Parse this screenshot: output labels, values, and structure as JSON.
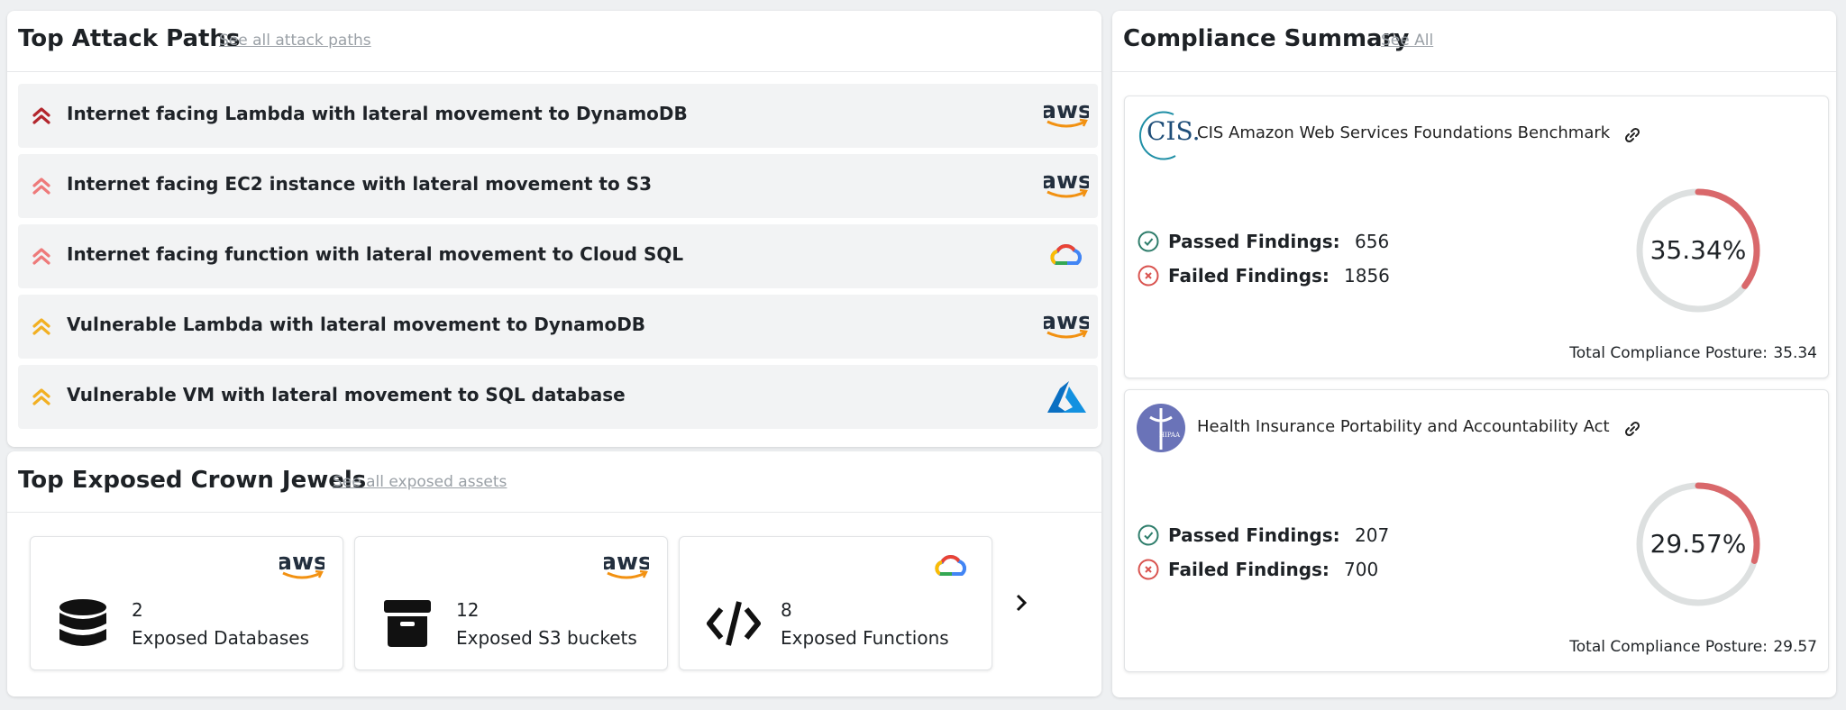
{
  "attack_paths": {
    "title": "Top Attack Paths",
    "link": "See all attack paths",
    "items": [
      {
        "label": "Internet facing Lambda with lateral movement to DynamoDB",
        "color": "#b3262d",
        "provider": "aws"
      },
      {
        "label": "Internet facing EC2 instance with lateral movement to S3",
        "color": "#ee7a7a",
        "provider": "aws"
      },
      {
        "label": "Internet facing function with lateral movement to Cloud SQL",
        "color": "#ee7a7a",
        "provider": "gcp"
      },
      {
        "label": "Vulnerable Lambda with lateral movement to DynamoDB",
        "color": "#f2b023",
        "provider": "aws"
      },
      {
        "label": "Vulnerable VM with lateral movement to SQL database",
        "color": "#f2b023",
        "provider": "azure"
      }
    ]
  },
  "crown_jewels": {
    "title": "Top Exposed Crown Jewels",
    "link": "See all exposed assets",
    "cards": [
      {
        "count": 2,
        "label": "Exposed Databases",
        "provider": "aws"
      },
      {
        "count": 12,
        "label": "Exposed S3 buckets",
        "provider": "aws"
      },
      {
        "count": 8,
        "label": "Exposed Functions",
        "provider": "gcp"
      }
    ]
  },
  "compliance": {
    "title": "Compliance Summary",
    "link": "See All",
    "cards": [
      {
        "logo_text": "CIS.",
        "name": "CIS Amazon Web Services Foundations Benchmark",
        "passed_label": "Passed Findings:",
        "passed": 656,
        "failed_label": "Failed Findings:",
        "failed": 1856,
        "percent_label": "35.34%",
        "posture_label": "Total Compliance Posture:",
        "posture": 35.34
      },
      {
        "logo_text": "HIPAA",
        "name": "Health Insurance Portability and Accountability Act",
        "passed_label": "Passed Findings:",
        "passed": 207,
        "failed_label": "Failed Findings:",
        "failed": 700,
        "percent_label": "29.57%",
        "posture_label": "Total Compliance Posture:",
        "posture": 29.57
      }
    ]
  }
}
